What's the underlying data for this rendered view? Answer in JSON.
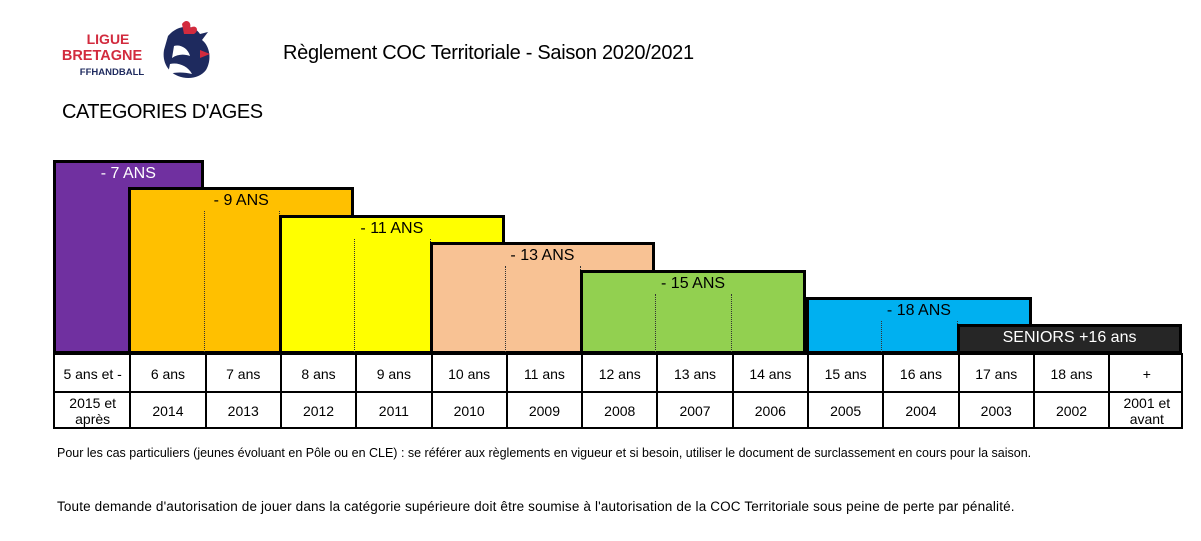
{
  "header": {
    "title": "Règlement COC Territoriale - Saison 2020/2021",
    "logo_text": [
      "LIGUE",
      "BRETAGNE",
      "FFHANDBALL"
    ]
  },
  "section_title": "CATEGORIES D'AGES",
  "categories": [
    {
      "label": "- 7 ANS",
      "color": "#7030A0",
      "label_color": "#ffffff",
      "start_col": 0,
      "end_col": 2,
      "level": 0
    },
    {
      "label": "- 9 ANS",
      "color": "#FFC000",
      "label_color": "#000000",
      "start_col": 1,
      "end_col": 4,
      "level": 1
    },
    {
      "label": "- 11 ANS",
      "color": "#FFFF00",
      "label_color": "#000000",
      "start_col": 3,
      "end_col": 6,
      "level": 2
    },
    {
      "label": "- 13 ANS",
      "color": "#F8C294",
      "label_color": "#000000",
      "start_col": 5,
      "end_col": 8,
      "level": 3
    },
    {
      "label": "- 15  ANS",
      "color": "#92D050",
      "label_color": "#000000",
      "start_col": 7,
      "end_col": 10,
      "level": 4
    },
    {
      "label": "- 18  ANS",
      "color": "#00B0F0",
      "label_color": "#000000",
      "start_col": 10,
      "end_col": 13,
      "level": 5
    },
    {
      "label": "SENIORS  +16 ans",
      "color": "#262626",
      "label_color": "#ffffff",
      "start_col": 12,
      "end_col": 15,
      "level": 6
    }
  ],
  "table": {
    "ages": [
      "5 ans et -",
      "6 ans",
      "7 ans",
      "8 ans",
      "9 ans",
      "10 ans",
      "11 ans",
      "12 ans",
      "13 ans",
      "14 ans",
      "15 ans",
      "16 ans",
      "17 ans",
      "18 ans",
      "+"
    ],
    "years": [
      "2015 et\naprès",
      "2014",
      "2013",
      "2012",
      "2011",
      "2010",
      "2009",
      "2008",
      "2007",
      "2006",
      "2005",
      "2004",
      "2003",
      "2002",
      "2001 et\navant"
    ]
  },
  "notes": [
    "Pour les cas particuliers (jeunes évoluant en Pôle ou en CLE) : se référer aux règlements en vigueur et si besoin, utiliser le document de surclassement en cours pour la saison.",
    "Toute demande d'autorisation de jouer dans la catégorie supérieure doit être soumise à l'autorisation de la COC Territoriale sous peine de perte par pénalité."
  ]
}
